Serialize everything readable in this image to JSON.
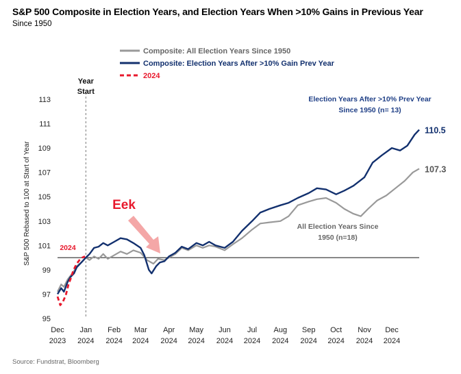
{
  "header": {
    "title": "S&P 500 Composite in Election Years, and Election Years When >10% Gains in Previous Year",
    "subtitle": "Since 1950"
  },
  "footer": {
    "source": "Source: Fundstrat, Bloomberg"
  },
  "colors": {
    "composite": "#999999",
    "after_gain": "#12306e",
    "y2024": "#e8182c",
    "arrow": "#f4a7a7",
    "eek": "#e8182c",
    "label_dark": "#1f3f86",
    "label_gray": "#666666"
  },
  "chart_data": {
    "type": "line",
    "title": "S&P 500 Composite in Election Years, and Election Years When >10% Gains in Previous Year",
    "subtitle": "Since 1950",
    "ylabel": "S&P 500 Rebased to 100 at Start of Year",
    "xlabel": "",
    "ylim": [
      95,
      113
    ],
    "y_ticks": [
      "95",
      "97",
      "99",
      "101",
      "103",
      "105",
      "107",
      "109",
      "111",
      "113"
    ],
    "x_range": [
      "2023-12-01",
      "2024-12-31"
    ],
    "x_ticks": [
      {
        "line1": "Dec",
        "line2": "2023",
        "date": "2023-12-01"
      },
      {
        "line1": "Jan",
        "line2": "2024",
        "date": "2024-01-01"
      },
      {
        "line1": "Feb",
        "line2": "2024",
        "date": "2024-02-01"
      },
      {
        "line1": "Mar",
        "line2": "2024",
        "date": "2024-03-01"
      },
      {
        "line1": "Apr",
        "line2": "2024",
        "date": "2024-04-01"
      },
      {
        "line1": "May",
        "line2": "2024",
        "date": "2024-05-01"
      },
      {
        "line1": "Jun",
        "line2": "2024",
        "date": "2024-06-01"
      },
      {
        "line1": "Jul",
        "line2": "2024",
        "date": "2024-07-01"
      },
      {
        "line1": "Aug",
        "line2": "2024",
        "date": "2024-08-01"
      },
      {
        "line1": "Sep",
        "line2": "2024",
        "date": "2024-09-01"
      },
      {
        "line1": "Oct",
        "line2": "2024",
        "date": "2024-10-01"
      },
      {
        "line1": "Nov",
        "line2": "2024",
        "date": "2024-11-01"
      },
      {
        "line1": "Dec",
        "line2": "2024",
        "date": "2024-12-01"
      }
    ],
    "grid": false,
    "legend_position": "top-center",
    "reference_line_y": 100,
    "vertical_marker": {
      "date": "2024-01-01",
      "label_line1": "Year",
      "label_line2": "Start"
    },
    "series": [
      {
        "name": "Composite: All Election Years Since 1950",
        "key": "composite",
        "style": "solid",
        "points": [
          [
            "2023-12-01",
            97.2
          ],
          [
            "2023-12-05",
            97.8
          ],
          [
            "2023-12-08",
            97.6
          ],
          [
            "2023-12-12",
            98.2
          ],
          [
            "2023-12-15",
            98.5
          ],
          [
            "2023-12-19",
            98.9
          ],
          [
            "2023-12-22",
            99.3
          ],
          [
            "2023-12-27",
            99.6
          ],
          [
            "2024-01-01",
            100.0
          ],
          [
            "2024-01-05",
            99.8
          ],
          [
            "2024-01-10",
            100.1
          ],
          [
            "2024-01-15",
            99.9
          ],
          [
            "2024-01-20",
            100.3
          ],
          [
            "2024-01-25",
            99.9
          ],
          [
            "2024-02-01",
            100.2
          ],
          [
            "2024-02-08",
            100.5
          ],
          [
            "2024-02-15",
            100.3
          ],
          [
            "2024-02-22",
            100.6
          ],
          [
            "2024-03-01",
            100.4
          ],
          [
            "2024-03-08",
            99.8
          ],
          [
            "2024-03-15",
            99.5
          ],
          [
            "2024-03-20",
            99.9
          ],
          [
            "2024-03-27",
            99.8
          ],
          [
            "2024-04-01",
            100.0
          ],
          [
            "2024-04-08",
            100.3
          ],
          [
            "2024-04-15",
            100.8
          ],
          [
            "2024-04-22",
            100.6
          ],
          [
            "2024-05-01",
            101.0
          ],
          [
            "2024-05-08",
            100.8
          ],
          [
            "2024-05-15",
            101.0
          ],
          [
            "2024-05-22",
            100.9
          ],
          [
            "2024-06-01",
            100.6
          ],
          [
            "2024-06-10",
            101.1
          ],
          [
            "2024-06-20",
            101.6
          ],
          [
            "2024-07-01",
            102.3
          ],
          [
            "2024-07-10",
            102.8
          ],
          [
            "2024-07-20",
            102.9
          ],
          [
            "2024-08-01",
            103.0
          ],
          [
            "2024-08-10",
            103.4
          ],
          [
            "2024-08-20",
            104.3
          ],
          [
            "2024-09-01",
            104.6
          ],
          [
            "2024-09-10",
            104.8
          ],
          [
            "2024-09-20",
            104.9
          ],
          [
            "2024-10-01",
            104.5
          ],
          [
            "2024-10-10",
            104.0
          ],
          [
            "2024-10-20",
            103.6
          ],
          [
            "2024-10-28",
            103.4
          ],
          [
            "2024-11-05",
            104.0
          ],
          [
            "2024-11-15",
            104.7
          ],
          [
            "2024-11-25",
            105.1
          ],
          [
            "2024-12-05",
            105.7
          ],
          [
            "2024-12-15",
            106.3
          ],
          [
            "2024-12-24",
            107.0
          ],
          [
            "2024-12-31",
            107.3
          ]
        ]
      },
      {
        "name": "Composite: Election Years After >10% Gain Prev Year",
        "key": "after_gain",
        "style": "solid",
        "points": [
          [
            "2023-12-01",
            97.0
          ],
          [
            "2023-12-05",
            97.5
          ],
          [
            "2023-12-08",
            97.2
          ],
          [
            "2023-12-12",
            98.0
          ],
          [
            "2023-12-15",
            98.4
          ],
          [
            "2023-12-19",
            98.7
          ],
          [
            "2023-12-22",
            99.2
          ],
          [
            "2023-12-27",
            99.6
          ],
          [
            "2024-01-01",
            100.0
          ],
          [
            "2024-01-05",
            100.3
          ],
          [
            "2024-01-10",
            100.8
          ],
          [
            "2024-01-15",
            100.9
          ],
          [
            "2024-01-20",
            101.2
          ],
          [
            "2024-01-25",
            101.0
          ],
          [
            "2024-02-01",
            101.3
          ],
          [
            "2024-02-08",
            101.6
          ],
          [
            "2024-02-15",
            101.5
          ],
          [
            "2024-02-22",
            101.2
          ],
          [
            "2024-03-01",
            100.8
          ],
          [
            "2024-03-05",
            100.2
          ],
          [
            "2024-03-10",
            99.0
          ],
          [
            "2024-03-13",
            98.7
          ],
          [
            "2024-03-18",
            99.3
          ],
          [
            "2024-03-22",
            99.6
          ],
          [
            "2024-03-27",
            99.7
          ],
          [
            "2024-04-01",
            100.1
          ],
          [
            "2024-04-08",
            100.4
          ],
          [
            "2024-04-15",
            100.9
          ],
          [
            "2024-04-22",
            100.7
          ],
          [
            "2024-05-01",
            101.2
          ],
          [
            "2024-05-08",
            101.0
          ],
          [
            "2024-05-15",
            101.3
          ],
          [
            "2024-05-22",
            101.0
          ],
          [
            "2024-06-01",
            100.8
          ],
          [
            "2024-06-10",
            101.3
          ],
          [
            "2024-06-20",
            102.2
          ],
          [
            "2024-07-01",
            103.0
          ],
          [
            "2024-07-10",
            103.7
          ],
          [
            "2024-07-20",
            104.0
          ],
          [
            "2024-08-01",
            104.3
          ],
          [
            "2024-08-10",
            104.5
          ],
          [
            "2024-08-20",
            104.9
          ],
          [
            "2024-09-01",
            105.3
          ],
          [
            "2024-09-10",
            105.7
          ],
          [
            "2024-09-20",
            105.6
          ],
          [
            "2024-10-01",
            105.2
          ],
          [
            "2024-10-10",
            105.5
          ],
          [
            "2024-10-20",
            105.9
          ],
          [
            "2024-11-01",
            106.6
          ],
          [
            "2024-11-10",
            107.8
          ],
          [
            "2024-11-20",
            108.4
          ],
          [
            "2024-12-01",
            109.0
          ],
          [
            "2024-12-10",
            108.8
          ],
          [
            "2024-12-18",
            109.2
          ],
          [
            "2024-12-26",
            110.1
          ],
          [
            "2024-12-31",
            110.5
          ]
        ]
      },
      {
        "name": "2024",
        "key": "y2024",
        "style": "dashed",
        "points": [
          [
            "2023-12-01",
            96.8
          ],
          [
            "2023-12-04",
            96.1
          ],
          [
            "2023-12-07",
            96.4
          ],
          [
            "2023-12-10",
            96.9
          ],
          [
            "2023-12-13",
            97.8
          ],
          [
            "2023-12-16",
            98.4
          ],
          [
            "2023-12-18",
            98.9
          ],
          [
            "2023-12-20",
            99.2
          ],
          [
            "2023-12-22",
            99.5
          ],
          [
            "2023-12-25",
            99.8
          ],
          [
            "2023-12-28",
            100.0
          ],
          [
            "2023-12-31",
            100.1
          ]
        ]
      }
    ],
    "end_labels": [
      {
        "series": "after_gain",
        "text": "110.5"
      },
      {
        "series": "composite",
        "text": "107.3"
      }
    ],
    "annotations": [
      {
        "key": "after_gain",
        "line1": "Election Years After >10% Prev Year",
        "line2": "Since 1950 (n= 13)"
      },
      {
        "key": "composite",
        "line1": "All Election Years Since",
        "line2": "1950 (n=18)"
      },
      {
        "key": "y2024",
        "line1": "2024",
        "line2": ""
      },
      {
        "key": "eek",
        "line1": "Eek",
        "line2": ""
      }
    ]
  }
}
